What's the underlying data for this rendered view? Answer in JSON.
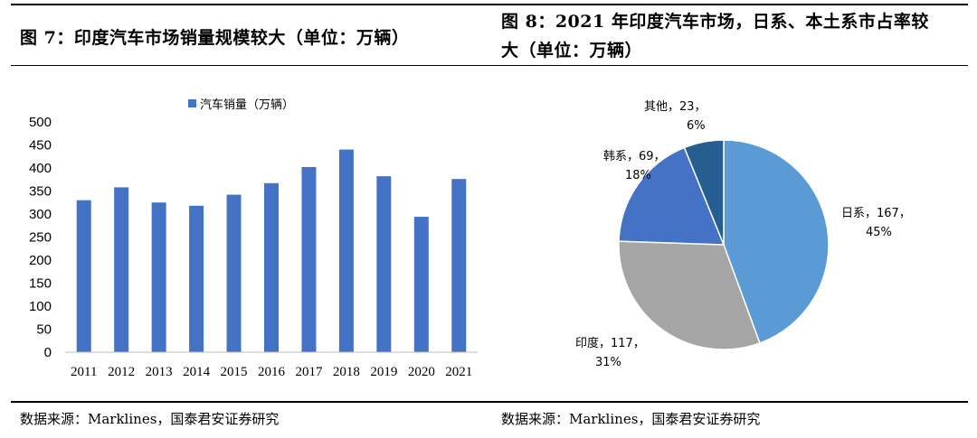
{
  "figures": [
    {
      "title": "图 7：印度汽车市场销量规模较大（单位：万辆）",
      "source": "数据来源：Marklines，国泰君安证券研究"
    },
    {
      "title_line1": "图 8：2021 年印度汽车市场，日系、本土系市占率较",
      "title_line2": "大（单位：万辆）",
      "source": "数据来源：Marklines，国泰君安证券研究"
    }
  ],
  "chart_data": [
    {
      "type": "bar",
      "title": "",
      "legend": "汽车销量（万辆）",
      "legend_position": "top",
      "categories": [
        "2011",
        "2012",
        "2013",
        "2014",
        "2015",
        "2016",
        "2017",
        "2018",
        "2019",
        "2020",
        "2021"
      ],
      "values": [
        330,
        358,
        325,
        318,
        342,
        367,
        402,
        440,
        382,
        294,
        376
      ],
      "ylim": [
        0,
        500
      ],
      "yticks": [
        "0",
        "50",
        "100",
        "150",
        "200",
        "250",
        "300",
        "350",
        "400",
        "450",
        "500"
      ],
      "grid": false,
      "color": "#4472C4"
    },
    {
      "type": "pie",
      "title": "",
      "slices": [
        {
          "name": "日系",
          "value": 167,
          "percent": "45%",
          "label_line1": "日系，167，",
          "label_line2": "45%",
          "color": "#5B9BD5"
        },
        {
          "name": "印度",
          "value": 117,
          "percent": "31%",
          "label_line1": "印度，117，",
          "label_line2": "31%",
          "color": "#A5A5A5"
        },
        {
          "name": "韩系",
          "value": 69,
          "percent": "18%",
          "label_line1": "韩系，69，",
          "label_line2": "18%",
          "color": "#4472C4"
        },
        {
          "name": "其他",
          "value": 23,
          "percent": "6%",
          "label_line1": "其他，23，",
          "label_line2": "6%",
          "color": "#255E91"
        }
      ]
    }
  ]
}
